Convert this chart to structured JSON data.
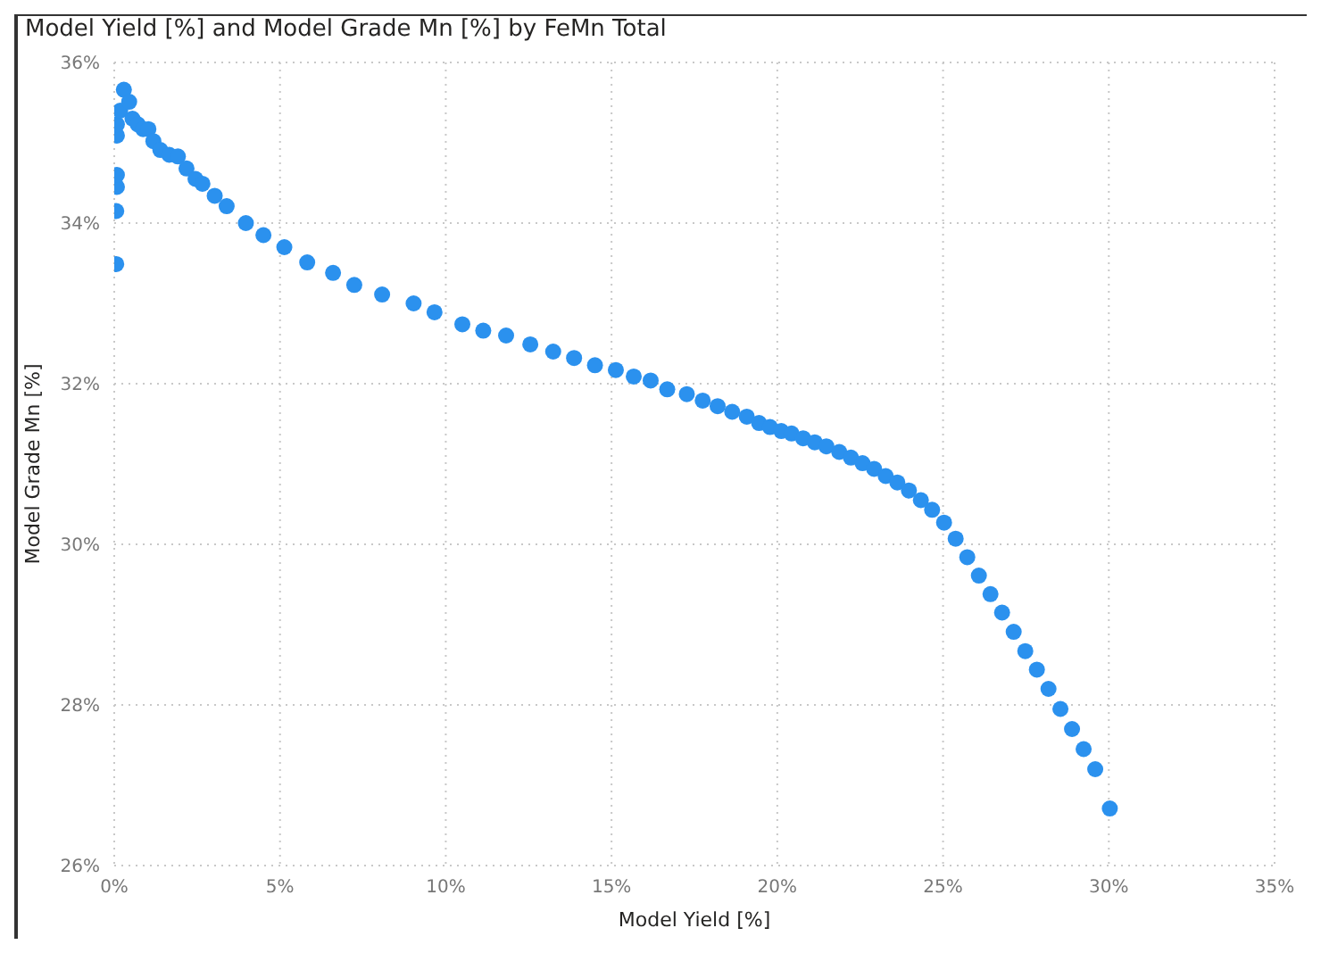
{
  "chart_data": {
    "type": "scatter",
    "title": "Model Yield [%] and Model Grade Mn [%] by FeMn Total",
    "xlabel": "Model Yield [%]",
    "ylabel": "Model Grade Mn [%]",
    "xlim": [
      0,
      35
    ],
    "ylim": [
      26,
      36
    ],
    "xticks": [
      {
        "value": 0,
        "label": "0%"
      },
      {
        "value": 5,
        "label": "5%"
      },
      {
        "value": 10,
        "label": "10%"
      },
      {
        "value": 15,
        "label": "15%"
      },
      {
        "value": 20,
        "label": "20%"
      },
      {
        "value": 25,
        "label": "25%"
      },
      {
        "value": 30,
        "label": "30%"
      },
      {
        "value": 35,
        "label": "35%"
      }
    ],
    "yticks": [
      {
        "value": 26,
        "label": "26%"
      },
      {
        "value": 28,
        "label": "28%"
      },
      {
        "value": 30,
        "label": "30%"
      },
      {
        "value": 32,
        "label": "32%"
      },
      {
        "value": 34,
        "label": "34%"
      },
      {
        "value": 36,
        "label": "36%"
      }
    ],
    "grid": true,
    "marker": "circle",
    "series": [
      {
        "color": "#2b91ee",
        "x": [
          0.06,
          0.06,
          0.08,
          0.08,
          0.08,
          0.08,
          0.18,
          0.29,
          0.45,
          0.55,
          0.71,
          0.87,
          1.03,
          1.18,
          1.39,
          1.66,
          1.92,
          2.18,
          2.45,
          2.66,
          3.03,
          3.39,
          3.97,
          4.5,
          5.13,
          5.82,
          6.6,
          7.24,
          8.08,
          9.03,
          9.66,
          10.5,
          11.13,
          11.82,
          12.55,
          13.24,
          13.87,
          14.5,
          15.13,
          15.67,
          16.18,
          16.68,
          17.27,
          17.75,
          18.2,
          18.64,
          19.08,
          19.45,
          19.78,
          20.12,
          20.43,
          20.78,
          21.13,
          21.48,
          21.87,
          22.22,
          22.57,
          22.92,
          23.27,
          23.62,
          23.97,
          24.33,
          24.67,
          25.03,
          25.38,
          25.73,
          26.08,
          26.43,
          26.78,
          27.13,
          27.48,
          27.83,
          28.18,
          28.54,
          28.89,
          29.24,
          29.59,
          30.03
        ],
        "values": [
          33.49,
          34.15,
          34.45,
          34.6,
          35.09,
          35.23,
          35.4,
          35.66,
          35.51,
          35.3,
          35.23,
          35.17,
          35.17,
          35.02,
          34.91,
          34.85,
          34.83,
          34.68,
          34.55,
          34.49,
          34.34,
          34.21,
          34.0,
          33.85,
          33.7,
          33.51,
          33.38,
          33.23,
          33.11,
          33.0,
          32.89,
          32.74,
          32.66,
          32.6,
          32.49,
          32.4,
          32.32,
          32.23,
          32.17,
          32.09,
          32.04,
          31.93,
          31.87,
          31.79,
          31.72,
          31.65,
          31.59,
          31.51,
          31.46,
          31.41,
          31.38,
          31.32,
          31.27,
          31.22,
          31.15,
          31.08,
          31.01,
          30.94,
          30.85,
          30.77,
          30.67,
          30.55,
          30.43,
          30.27,
          30.07,
          29.84,
          29.61,
          29.38,
          29.15,
          28.91,
          28.67,
          28.44,
          28.2,
          27.95,
          27.7,
          27.45,
          27.2,
          26.71
        ]
      }
    ]
  }
}
